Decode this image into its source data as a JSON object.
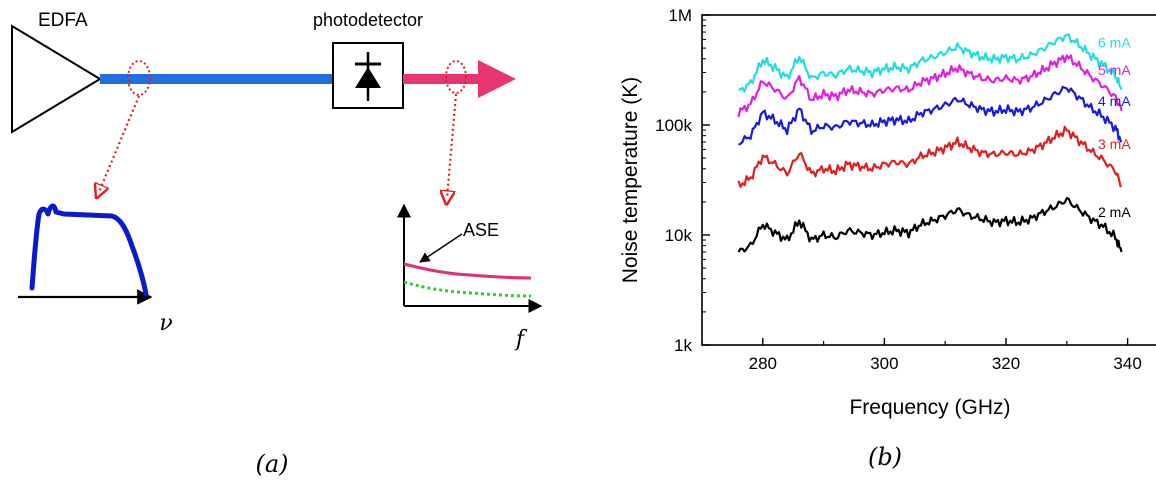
{
  "panel_a": {
    "amplifier_label": "EDFA",
    "detector_label": "photodetector",
    "spectrum_axis_label": "ν",
    "rf_axis_label": "f",
    "ase_label": "ASE",
    "caption": "(a)"
  },
  "panel_b": {
    "caption": "(b)"
  },
  "colors": {
    "optical_fiber": "#1f6fe0",
    "rf_output": "#e8356f",
    "dotted_arrows": "#e02020",
    "optical_spectrum": "#0a1ad0",
    "ase_curve": "#e0307a",
    "noise_floor": "#33cc33"
  },
  "chart_data": {
    "type": "line",
    "title": "",
    "xlabel": "Frequency (GHz)",
    "ylabel": "Noise temperature (K)",
    "xlim": [
      270,
      345
    ],
    "ylim": [
      1000,
      1000000
    ],
    "yscale": "log",
    "xticks": [
      280,
      300,
      320,
      340
    ],
    "xtick_labels": [
      "280",
      "300",
      "320",
      "340"
    ],
    "yticks": [
      1000,
      10000,
      100000,
      1000000
    ],
    "ytick_labels": [
      "1k",
      "10k",
      "100k",
      "1M"
    ],
    "grid": false,
    "legend": "inline labels at right end of each curve",
    "x": [
      276,
      278,
      280,
      282,
      284,
      286,
      288,
      290,
      292,
      294,
      296,
      298,
      300,
      302,
      304,
      306,
      308,
      310,
      312,
      314,
      316,
      318,
      320,
      322,
      324,
      326,
      328,
      330,
      332,
      334,
      336,
      338,
      339
    ],
    "series": [
      {
        "name": "2 mA",
        "color": "#000000",
        "values": [
          7000,
          8000,
          12500,
          10500,
          9000,
          13500,
          9000,
          10000,
          9500,
          11000,
          10500,
          10000,
          10500,
          11000,
          10500,
          12500,
          13500,
          15000,
          17000,
          15000,
          14000,
          13000,
          13500,
          13000,
          14000,
          16000,
          18000,
          21000,
          17000,
          14000,
          12000,
          9500,
          7000
        ]
      },
      {
        "name": "3 mA",
        "color": "#e02020",
        "values": [
          28000,
          33000,
          52000,
          44000,
          36000,
          56000,
          36000,
          40000,
          38000,
          44000,
          42000,
          40000,
          44000,
          46000,
          44000,
          52000,
          56000,
          62000,
          70000,
          62000,
          56000,
          54000,
          56000,
          54000,
          58000,
          66000,
          78000,
          90000,
          72000,
          58000,
          48000,
          38000,
          28000
        ]
      },
      {
        "name": "4 mA",
        "color": "#1a1adc",
        "values": [
          68000,
          80000,
          130000,
          110000,
          90000,
          140000,
          88000,
          98000,
          95000,
          108000,
          104000,
          100000,
          108000,
          112000,
          108000,
          128000,
          138000,
          152000,
          172000,
          152000,
          138000,
          132000,
          138000,
          132000,
          142000,
          162000,
          190000,
          220000,
          178000,
          142000,
          118000,
          94000,
          70000
        ]
      },
      {
        "name": "5 mA",
        "color": "#e020e0",
        "values": [
          130000,
          155000,
          250000,
          212000,
          172000,
          270000,
          170000,
          190000,
          182000,
          208000,
          200000,
          192000,
          208000,
          216000,
          208000,
          246000,
          266000,
          292000,
          330000,
          292000,
          266000,
          254000,
          266000,
          254000,
          274000,
          312000,
          366000,
          420000,
          344000,
          274000,
          226000,
          180000,
          135000
        ]
      },
      {
        "name": "6 mA",
        "color": "#22dde0",
        "values": [
          200000,
          240000,
          390000,
          330000,
          268000,
          420000,
          264000,
          296000,
          284000,
          324000,
          312000,
          300000,
          324000,
          336000,
          324000,
          384000,
          414000,
          456000,
          516000,
          456000,
          414000,
          396000,
          414000,
          396000,
          428000,
          488000,
          572000,
          650000,
          536000,
          428000,
          352000,
          282000,
          210000
        ]
      }
    ]
  }
}
